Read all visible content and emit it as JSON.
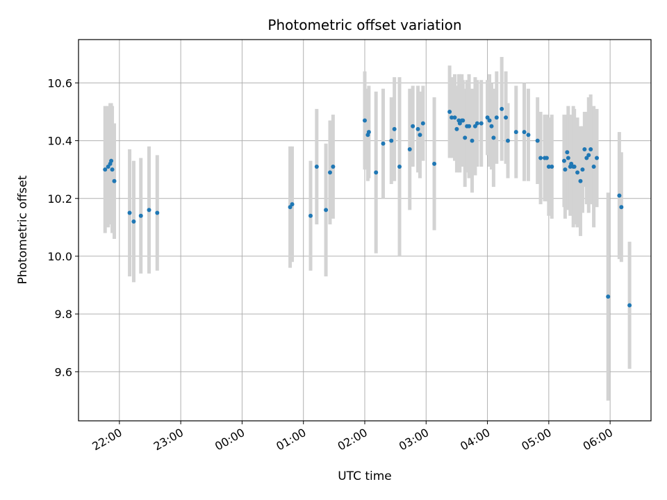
{
  "chart_data": {
    "type": "scatter",
    "title": "Photometric offset variation",
    "xlabel": "UTC time",
    "ylabel": "Photometric offset",
    "x_axis_kind": "time",
    "x_range": [
      "21:20",
      "06:40"
    ],
    "ylim": [
      9.43,
      10.75
    ],
    "x_ticks": [
      "22:00",
      "23:00",
      "00:00",
      "01:00",
      "02:00",
      "03:00",
      "04:00",
      "05:00",
      "06:00"
    ],
    "y_ticks": [
      9.6,
      9.8,
      10.0,
      10.2,
      10.4,
      10.6
    ],
    "y_tick_labels": [
      "9.6",
      "9.8",
      "10.0",
      "10.2",
      "10.4",
      "10.6"
    ],
    "grid": true,
    "colors": {
      "point": "#1f77b4",
      "errorbar": "#d3d3d3",
      "grid": "#b0b0b0"
    },
    "series": [
      {
        "x": [
          "21:46",
          "21:49",
          "21:51",
          "21:52",
          "21:53",
          "21:55",
          "22:10",
          "22:14",
          "22:21",
          "22:29",
          "22:37",
          "00:47",
          "00:49",
          "01:07",
          "01:13",
          "01:22",
          "01:26",
          "01:29",
          "02:00",
          "02:03",
          "02:04",
          "02:11",
          "02:18",
          "02:26",
          "02:29",
          "02:34",
          "02:44",
          "02:47",
          "02:52",
          "02:54",
          "02:57",
          "03:08",
          "03:23",
          "03:25",
          "03:28",
          "03:30",
          "03:32",
          "03:33",
          "03:35",
          "03:36",
          "03:38",
          "03:40",
          "03:42",
          "03:45",
          "03:48",
          "03:50",
          "03:54",
          "04:00",
          "04:02",
          "04:04",
          "04:06",
          "04:09",
          "04:14",
          "04:18",
          "04:20",
          "04:28",
          "04:36",
          "04:40",
          "04:49",
          "04:52",
          "04:56",
          "04:58",
          "05:00",
          "05:03",
          "05:15",
          "05:16",
          "05:18",
          "05:19",
          "05:21",
          "05:22",
          "05:24",
          "05:25",
          "05:28",
          "05:31",
          "05:33",
          "05:35",
          "05:37",
          "05:39",
          "05:41",
          "05:44",
          "05:47",
          "05:58",
          "06:09",
          "06:11",
          "06:19"
        ],
        "y": [
          10.3,
          10.31,
          10.32,
          10.33,
          10.3,
          10.26,
          10.15,
          10.12,
          10.14,
          10.16,
          10.15,
          10.17,
          10.18,
          10.14,
          10.31,
          10.16,
          10.29,
          10.31,
          10.47,
          10.42,
          10.43,
          10.29,
          10.39,
          10.4,
          10.44,
          10.31,
          10.37,
          10.45,
          10.44,
          10.42,
          10.46,
          10.32,
          10.5,
          10.48,
          10.48,
          10.44,
          10.47,
          10.46,
          10.47,
          10.47,
          10.41,
          10.45,
          10.45,
          10.4,
          10.45,
          10.46,
          10.46,
          10.48,
          10.47,
          10.45,
          10.41,
          10.48,
          10.51,
          10.48,
          10.4,
          10.43,
          10.43,
          10.42,
          10.4,
          10.34,
          10.34,
          10.34,
          10.31,
          10.31,
          10.33,
          10.3,
          10.36,
          10.34,
          10.31,
          10.32,
          10.31,
          10.31,
          10.29,
          10.26,
          10.3,
          10.37,
          10.34,
          10.35,
          10.37,
          10.31,
          10.34,
          9.86,
          10.21,
          10.17,
          9.83
        ],
        "error": [
          0.22,
          0.21,
          0.21,
          0.2,
          0.22,
          0.2,
          0.22,
          0.21,
          0.2,
          0.22,
          0.2,
          0.21,
          0.2,
          0.19,
          0.2,
          0.23,
          0.18,
          0.18,
          0.17,
          0.16,
          0.16,
          0.28,
          0.19,
          0.15,
          0.18,
          0.31,
          0.21,
          0.14,
          0.15,
          0.15,
          0.13,
          0.23,
          0.16,
          0.14,
          0.15,
          0.15,
          0.16,
          0.17,
          0.16,
          0.14,
          0.17,
          0.16,
          0.18,
          0.18,
          0.17,
          0.15,
          0.15,
          0.13,
          0.16,
          0.15,
          0.17,
          0.16,
          0.18,
          0.16,
          0.13,
          0.16,
          0.17,
          0.16,
          0.15,
          0.16,
          0.15,
          0.15,
          0.17,
          0.18,
          0.16,
          0.17,
          0.13,
          0.18,
          0.17,
          0.17,
          0.21,
          0.2,
          0.19,
          0.19,
          0.15,
          0.13,
          0.16,
          0.2,
          0.19,
          0.21,
          0.17,
          0.36,
          0.22,
          0.19,
          0.22
        ]
      }
    ]
  }
}
